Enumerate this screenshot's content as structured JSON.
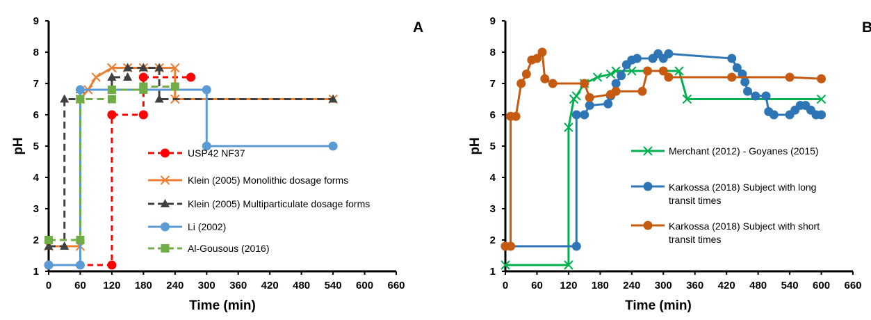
{
  "chart_data": [
    {
      "panel": "A",
      "type": "line",
      "xlabel": "Time (min)",
      "ylabel": "pH",
      "xlim": [
        0,
        660
      ],
      "ylim": [
        1,
        9
      ],
      "xticks": [
        0,
        60,
        120,
        180,
        240,
        300,
        360,
        420,
        480,
        540,
        600,
        660
      ],
      "yticks": [
        1,
        2,
        3,
        4,
        5,
        6,
        7,
        8,
        9
      ],
      "grid": false,
      "legend": "bottom-right",
      "series": [
        {
          "name": "USP42 NF37",
          "color": "#ff0000",
          "dash": "8,6",
          "marker": "circle",
          "x": [
            0,
            120,
            120,
            180,
            180,
            270
          ],
          "y": [
            1.2,
            1.2,
            6.0,
            6.0,
            7.2,
            7.2
          ]
        },
        {
          "name": "Klein (2005) Monolithic dosage forms",
          "color": "#ed7d31",
          "dash": "none",
          "marker": "x",
          "x": [
            0,
            60,
            60,
            75,
            90,
            120,
            120,
            150,
            180,
            210,
            240,
            240,
            540
          ],
          "y": [
            1.8,
            1.8,
            6.5,
            6.8,
            7.2,
            7.5,
            7.5,
            7.5,
            7.5,
            7.5,
            7.5,
            6.5,
            6.5
          ]
        },
        {
          "name": "Klein (2005) Multiparticulate dosage forms",
          "color": "#404040",
          "dash": "10,6",
          "marker": "triangle",
          "x": [
            0,
            30,
            30,
            60,
            60,
            120,
            120,
            150,
            150,
            180,
            210,
            210,
            540
          ],
          "y": [
            1.8,
            1.8,
            6.5,
            6.5,
            6.8,
            6.8,
            7.2,
            7.2,
            7.5,
            7.5,
            7.5,
            6.5,
            6.5
          ]
        },
        {
          "name": "Li (2002)",
          "color": "#5b9bd5",
          "dash": "none",
          "marker": "circle",
          "x": [
            0,
            60,
            60,
            300,
            300,
            540
          ],
          "y": [
            1.2,
            1.2,
            6.8,
            6.8,
            5.0,
            5.0
          ]
        },
        {
          "name": "Al-Gousous (2016)",
          "color": "#70ad47",
          "dash": "10,6",
          "marker": "square",
          "x": [
            0,
            60,
            60,
            120,
            120,
            180,
            180,
            240
          ],
          "y": [
            2.0,
            2.0,
            6.5,
            6.5,
            6.8,
            6.8,
            6.9,
            6.9
          ]
        }
      ]
    },
    {
      "panel": "B",
      "type": "line",
      "xlabel": "Time (min)",
      "ylabel": "pH",
      "xlim": [
        0,
        660
      ],
      "ylim": [
        1,
        9
      ],
      "xticks": [
        0,
        60,
        120,
        180,
        240,
        300,
        360,
        420,
        480,
        540,
        600,
        660
      ],
      "yticks": [
        1,
        2,
        3,
        4,
        5,
        6,
        7,
        8,
        9
      ],
      "grid": false,
      "legend": "right",
      "series": [
        {
          "name": "Merchant (2012) - Goyanes (2015)",
          "color": "#00b050",
          "dash": "none",
          "marker": "x",
          "x": [
            0,
            120,
            120,
            130,
            135,
            150,
            175,
            200,
            210,
            240,
            330,
            345,
            600
          ],
          "y": [
            1.2,
            1.2,
            5.6,
            6.5,
            6.6,
            7.0,
            7.2,
            7.3,
            7.4,
            7.4,
            7.4,
            6.5,
            6.5
          ]
        },
        {
          "name": "Karkossa (2018) Subject with long transit times",
          "color": "#2e75b6",
          "dash": "none",
          "marker": "circle",
          "x": [
            0,
            135,
            135,
            150,
            160,
            195,
            200,
            210,
            220,
            230,
            240,
            250,
            280,
            290,
            300,
            310,
            430,
            440,
            450,
            455,
            460,
            475,
            495,
            500,
            510,
            540,
            550,
            560,
            570,
            580,
            590,
            600
          ],
          "y": [
            1.8,
            1.8,
            6.0,
            6.0,
            6.3,
            6.35,
            6.6,
            7.0,
            7.25,
            7.6,
            7.75,
            7.8,
            7.8,
            7.95,
            7.8,
            7.95,
            7.8,
            7.5,
            7.3,
            7.05,
            6.75,
            6.6,
            6.6,
            6.1,
            6.0,
            6.0,
            6.15,
            6.3,
            6.3,
            6.15,
            6.0,
            6.0
          ]
        },
        {
          "name": "Karkossa (2018) Subject with short transit times",
          "color": "#c55a11",
          "dash": "none",
          "marker": "circle",
          "x": [
            0,
            10,
            10,
            20,
            30,
            40,
            50,
            60,
            70,
            75,
            90,
            150,
            160,
            200,
            210,
            260,
            270,
            300,
            310,
            430,
            540,
            600
          ],
          "y": [
            1.8,
            1.8,
            5.95,
            5.95,
            7.0,
            7.3,
            7.75,
            7.8,
            8.0,
            7.15,
            7.0,
            7.0,
            6.55,
            6.65,
            6.75,
            6.75,
            7.4,
            7.4,
            7.2,
            7.2,
            7.2,
            7.15
          ]
        }
      ]
    }
  ],
  "series_legend_names": {
    "merchant": "Merchant (2012) - Goyanes (2015)",
    "long_l1": "Karkossa (2018) Subject with long",
    "long_l2": "transit times",
    "short_l1": "Karkossa (2018) Subject with short",
    "short_l2": "transit times"
  },
  "labels": {
    "panel_a_tag": "A",
    "panel_b_tag": "B",
    "xlabel": "Time (min)",
    "ylabel": "pH"
  }
}
